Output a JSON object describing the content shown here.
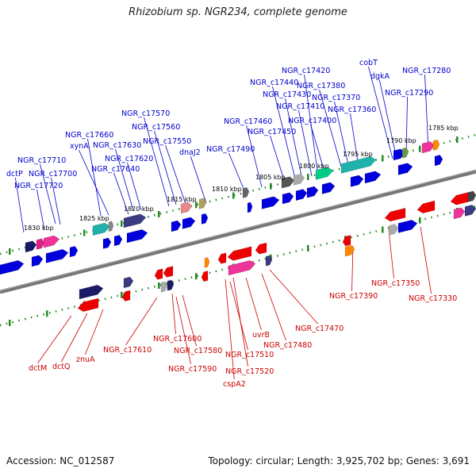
{
  "title": "Rhizobium sp. NGR234, complete genome",
  "footer": {
    "accession": "Accession: NC_012587",
    "summary": "Topology: circular; Length: 3,925,702 bp; Genes: 3,691"
  },
  "colors": {
    "forward": "#0000dd",
    "reverse": "#ee0000",
    "label_forward": "#0000cc",
    "label_reverse": "#cc0000",
    "backbone": "#777777",
    "tick": "#228b22"
  },
  "scale_labels": [
    "1830 kbp",
    "1825 kbp",
    "1820 kbp",
    "1815 kbp",
    "1810 kbp",
    "1805 kbp",
    "1800 kbp",
    "1795 kbp",
    "1790 kbp",
    "1785 kbp"
  ],
  "top_labels": [
    "cobT",
    "dgkA",
    "NGR_c17280",
    "NGR_c17420",
    "NGR_c17440",
    "NGR_c17380",
    "NGR_c17430",
    "NGR_c17370",
    "NGR_c17290",
    "NGR_c17410",
    "NGR_c17360",
    "NGR_c17570",
    "NGR_c17460",
    "NGR_c17400",
    "NGR_c17560",
    "NGR_c17450",
    "NGR_c17660",
    "NGR_c17550",
    "xynA",
    "NGR_c17630",
    "dnaJ2",
    "NGR_c17490",
    "NGR_c17620",
    "NGR_c17710",
    "NGR_c17640",
    "dctP",
    "NGR_c17700",
    "NGR_c17720"
  ],
  "bottom_labels": [
    "NGR_c17390",
    "NGR_c17350",
    "NGR_c17330",
    "NGR_c17470",
    "NGR_c17600",
    "uvrB",
    "NGR_c17610",
    "NGR_c17480",
    "NGR_c17580",
    "znuA",
    "NGR_c17510",
    "dctM",
    "dctQ",
    "NGR_c17590",
    "NGR_c17520",
    "cspA2"
  ]
}
